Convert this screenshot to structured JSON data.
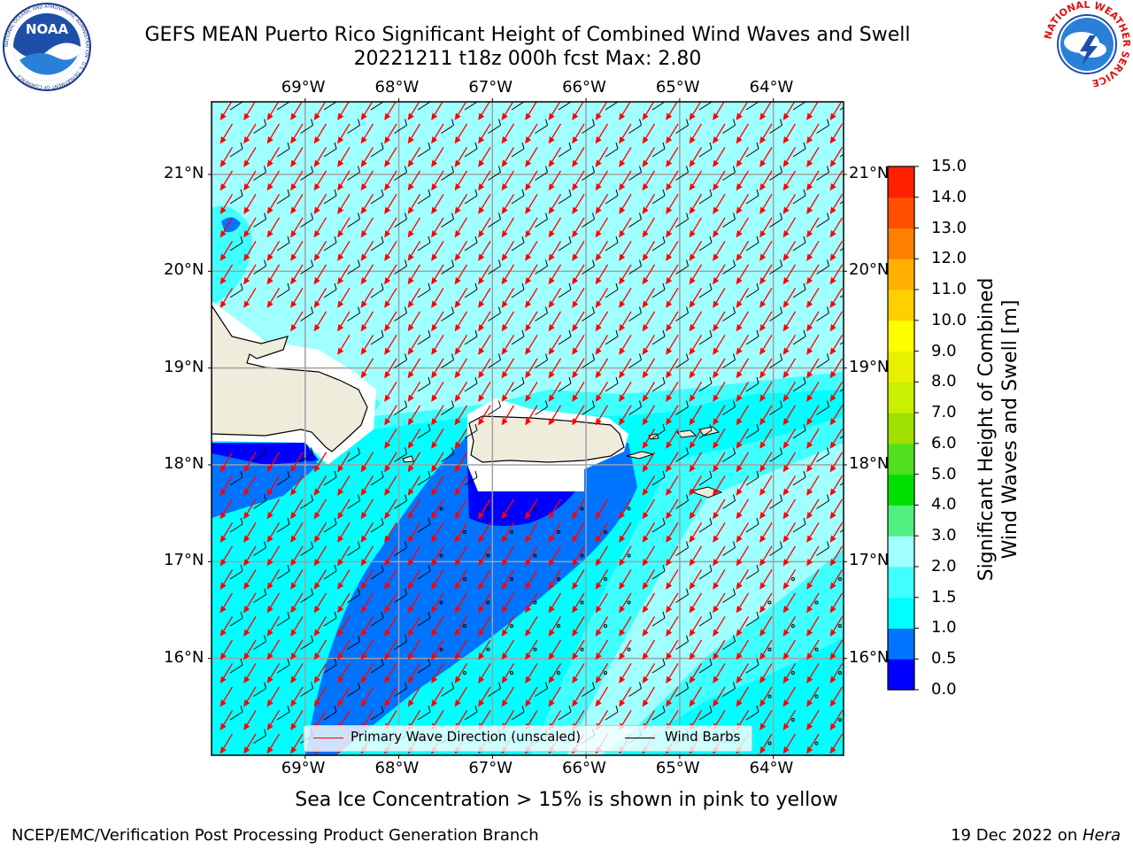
{
  "header": {
    "title_line1": "GEFS MEAN Puerto Rico Significant Height of Combined Wind Waves and Swell",
    "title_line2": "20221211 t18z 000h fcst   Max: 2.80",
    "left_logo_text": "NOAA",
    "left_logo_ring": "NATIONAL OCEANIC AND ATMOSPHERIC ADMINISTRATION · U.S. DEPARTMENT OF COMMERCE",
    "right_logo_ring": "NATIONAL WEATHER SERVICE"
  },
  "map": {
    "lon_range": [
      -70.0,
      -63.25
    ],
    "lat_range": [
      15.0,
      21.75
    ],
    "lon_ticks": [
      "69°W",
      "68°W",
      "67°W",
      "66°W",
      "65°W",
      "64°W"
    ],
    "lat_ticks": [
      "21°N",
      "20°N",
      "19°N",
      "18°N",
      "17°N",
      "16°N"
    ],
    "grid": true,
    "legend_position": "lower-center",
    "legend": [
      {
        "label": "Primary Wave Direction (unscaled)",
        "color": "#ff0000"
      },
      {
        "label": "Wind Barbs",
        "color": "#000000"
      }
    ],
    "regions_depicted": [
      "Hispaniola",
      "Puerto Rico",
      "Virgin Islands"
    ]
  },
  "colorbar": {
    "title": "Significant Height of Combined\nWind Waves and Swell [m]",
    "ticks": [
      "0.0",
      "0.5",
      "1.0",
      "1.5",
      "2.0",
      "3.0",
      "4.0",
      "5.0",
      "6.0",
      "7.0",
      "8.0",
      "9.0",
      "10.0",
      "11.0",
      "12.0",
      "13.0",
      "14.0",
      "15.0"
    ],
    "colors": [
      "#0000ff",
      "#0073ff",
      "#00ffff",
      "#40ffff",
      "#a0ffff",
      "#50f080",
      "#00e000",
      "#50e020",
      "#a0e000",
      "#c8f000",
      "#e8f000",
      "#ffff00",
      "#ffd000",
      "#ffb000",
      "#ff8000",
      "#ff5000",
      "#ff2000"
    ]
  },
  "footer": {
    "note": "Sea Ice Concentration > 15% is shown in pink to yellow",
    "credit": "NCEP/EMC/Verification Post Processing Product Generation Branch",
    "date": "19 Dec 2022 on ",
    "host": "Hera"
  }
}
